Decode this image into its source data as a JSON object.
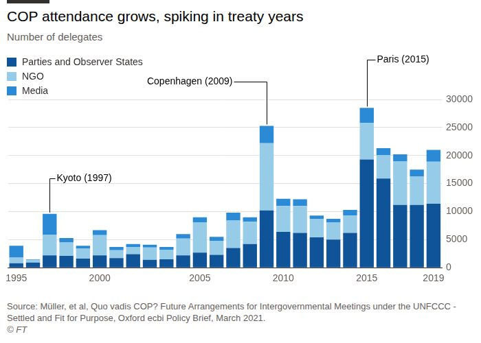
{
  "chart_data": {
    "type": "bar",
    "title": "COP attendance grows, spiking in treaty years",
    "subtitle": "Number of delegates",
    "categories": [
      "1995",
      null,
      null,
      null,
      null,
      "2000",
      null,
      null,
      null,
      null,
      null,
      "2005",
      null,
      null,
      null,
      null,
      "2010",
      null,
      null,
      null,
      null,
      "2015",
      null,
      null,
      null,
      "2019"
    ],
    "series": [
      {
        "name": "Parties and Observer States",
        "color": "#0f5499",
        "values": [
          800,
          900,
          2200,
          2100,
          1600,
          2200,
          1700,
          2400,
          1400,
          1500,
          2200,
          2700,
          2300,
          3500,
          4200,
          10200,
          6400,
          6200,
          5400,
          5000,
          6200,
          19300,
          15900,
          11200,
          11200,
          11400
        ]
      },
      {
        "name": "NGO",
        "color": "#96cce8",
        "values": [
          1000,
          500,
          3700,
          2400,
          1800,
          3600,
          1400,
          1300,
          2200,
          1700,
          3000,
          5400,
          2500,
          4900,
          4000,
          12000,
          4600,
          4800,
          3300,
          3100,
          3100,
          6500,
          4200,
          7800,
          5100,
          7500
        ]
      },
      {
        "name": "Media",
        "color": "#2a8ad6",
        "values": [
          2100,
          100,
          3700,
          800,
          500,
          900,
          600,
          500,
          500,
          500,
          800,
          900,
          700,
          1400,
          800,
          3100,
          1300,
          1200,
          600,
          600,
          1000,
          2700,
          1200,
          1200,
          1200,
          2100
        ]
      }
    ],
    "ylim": [
      0,
      30000
    ],
    "yticks": [
      0,
      5000,
      10000,
      15000,
      20000,
      25000,
      30000
    ],
    "stacked": true,
    "grid": true,
    "legend": "top-left",
    "annotations": [
      {
        "text": "Kyoto (1997)",
        "index": 2
      },
      {
        "text": "Copenhagen (2009)",
        "index": 15
      },
      {
        "text": "Paris (2015)",
        "index": 21
      }
    ],
    "source": "Source: Müller, et al, Quo vadis COP? Future Arrangements for Intergovernmental Meetings under the UNFCCC - Settled and Fit for Purpose, Oxford ecbi Policy Brief, March 2021.",
    "credit": "© FT"
  }
}
